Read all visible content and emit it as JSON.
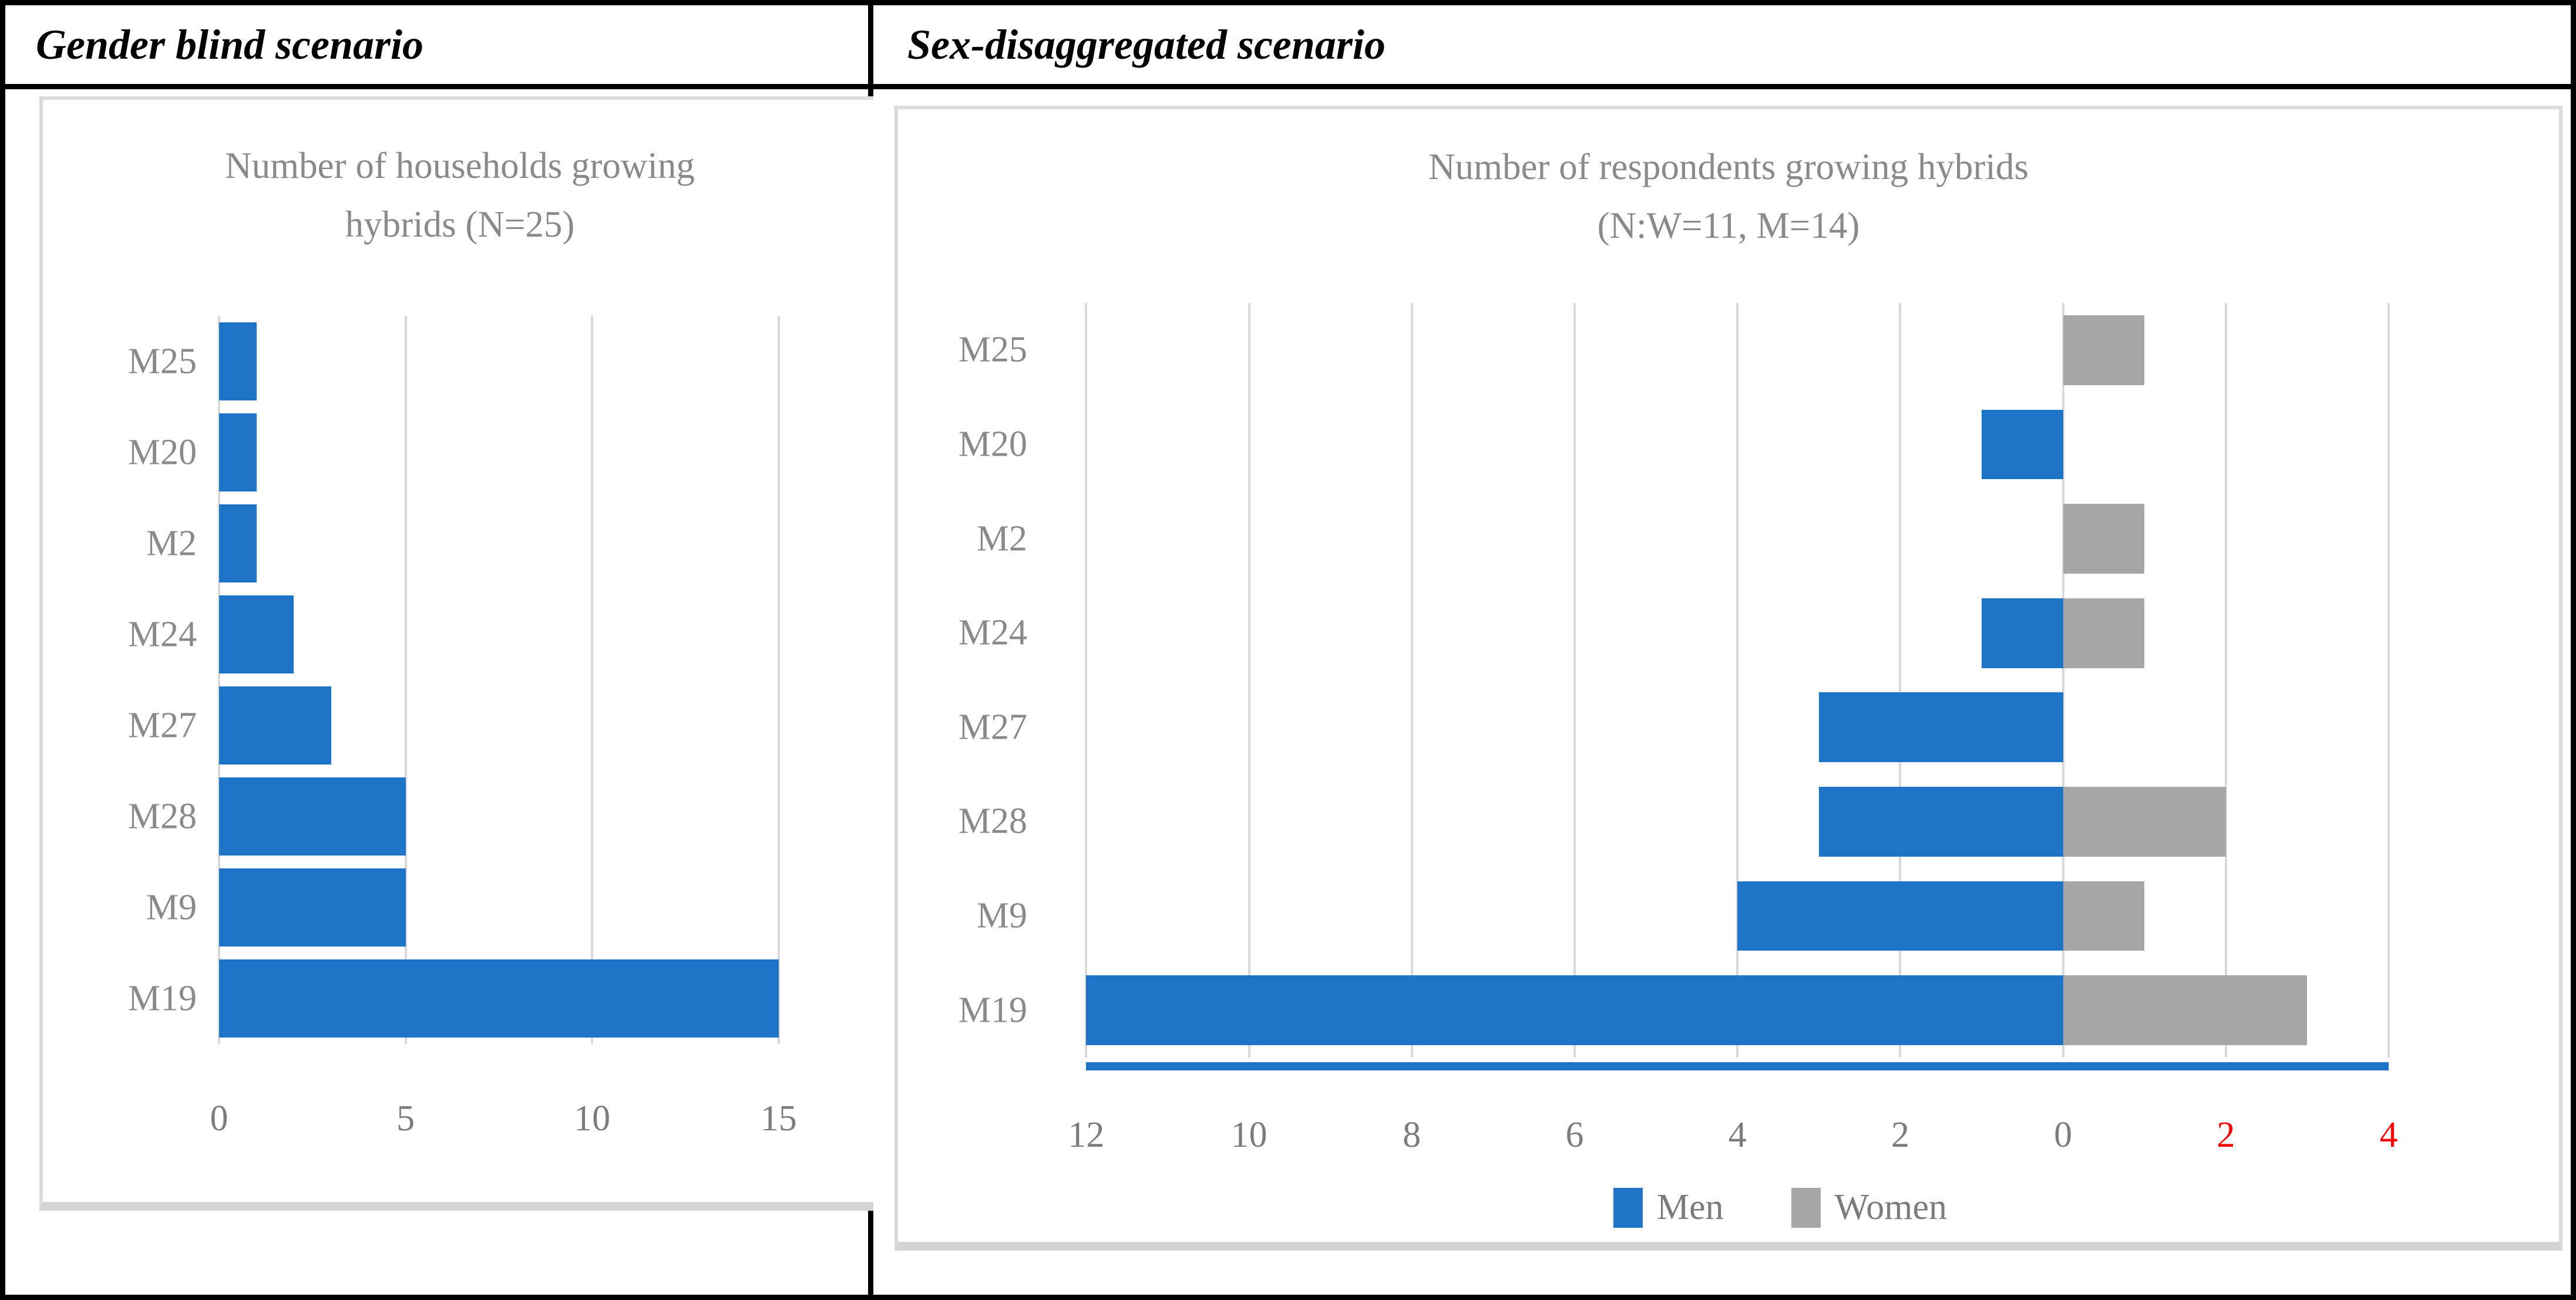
{
  "figure": {
    "header": {
      "left": "Gender blind scenario",
      "right": "Sex-disaggregated scenario"
    }
  },
  "colors": {
    "men_blue": "#1F74C8",
    "women_gray": "#A6A6A6",
    "gridline": "#D9D9D9",
    "panel_border": "#DBDBDB",
    "title_text": "#8A8A8A",
    "axis_text": "#7C7C7C",
    "red_tick": "#FF0000",
    "table_border": "#000000"
  },
  "chart_data": [
    {
      "type": "bar",
      "orientation": "horizontal",
      "title": "Number of households growing hybrids (N=25)",
      "title_lines": [
        "Number of households growing",
        "hybrids (N=25)"
      ],
      "categories": [
        "M25",
        "M20",
        "M2",
        "M24",
        "M27",
        "M28",
        "M9",
        "M19"
      ],
      "values": [
        1,
        1,
        1,
        2,
        3,
        5,
        5,
        15
      ],
      "bar_color": "#1F74C8",
      "grid": true,
      "legend": null,
      "x_axis": {
        "pad_left": 0,
        "span": 15,
        "pad_right": 1.5,
        "ticks": [
          {
            "label": "0",
            "pos": 0,
            "red": false
          },
          {
            "label": "5",
            "pos": 5,
            "red": false
          },
          {
            "label": "10",
            "pos": 10,
            "red": false
          },
          {
            "label": "15",
            "pos": 15,
            "red": false
          }
        ]
      }
    },
    {
      "type": "bar",
      "orientation": "horizontal-diverging",
      "title": "Number of respondents growing hybrids (N:W=11, M=14)",
      "title_lines": [
        "Number of respondents growing hybrids",
        "(N:W=11, M=14)"
      ],
      "categories": [
        "M25",
        "M20",
        "M2",
        "M24",
        "M27",
        "M28",
        "M9",
        "M19"
      ],
      "series": [
        {
          "name": "Men",
          "side": "left",
          "color": "#1F74C8",
          "values": [
            0,
            1,
            0,
            1,
            3,
            3,
            4,
            12
          ]
        },
        {
          "name": "Women",
          "side": "right",
          "color": "#A6A6A6",
          "values": [
            1,
            0,
            1,
            1,
            0,
            2,
            1,
            3
          ]
        }
      ],
      "zero_pos": 12,
      "grid": true,
      "x_axis": {
        "pad_left": 0.45,
        "span": 16,
        "pad_right": 1.5,
        "ticks": [
          {
            "label": "12",
            "pos": 0,
            "red": false
          },
          {
            "label": "10",
            "pos": 2,
            "red": false
          },
          {
            "label": "8",
            "pos": 4,
            "red": false
          },
          {
            "label": "6",
            "pos": 6,
            "red": false
          },
          {
            "label": "4",
            "pos": 8,
            "red": false
          },
          {
            "label": "2",
            "pos": 10,
            "red": false
          },
          {
            "label": "0",
            "pos": 12,
            "red": false
          },
          {
            "label": "2",
            "pos": 14,
            "red": true
          },
          {
            "label": "4",
            "pos": 16,
            "red": true
          }
        ]
      },
      "axis_line": {
        "from": 0,
        "to": 16,
        "color": "#1F74C8"
      },
      "legend": [
        {
          "label": "Men",
          "color": "#1F74C8"
        },
        {
          "label": "Women",
          "color": "#A6A6A6"
        }
      ]
    }
  ]
}
